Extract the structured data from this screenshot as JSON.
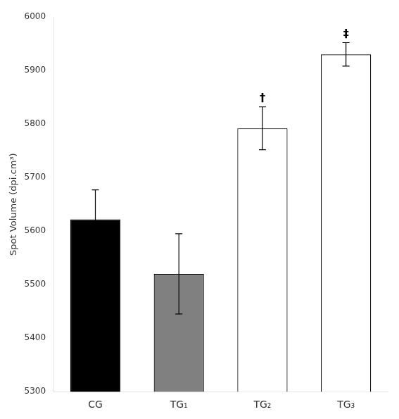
{
  "chart_data": {
    "type": "bar",
    "categories": [
      "CG",
      "TG₁",
      "TG₂",
      "TG₃"
    ],
    "values": [
      5622,
      5520,
      5792,
      5930
    ],
    "errors": [
      55,
      75,
      40,
      22
    ],
    "colors": [
      "black",
      "#808080",
      "white",
      "white"
    ],
    "ylabel": "Spot Volume (dpi.cm³)",
    "ylim": [
      5300,
      6000
    ],
    "yticks": [
      5300,
      5400,
      5500,
      5600,
      5700,
      5800,
      5900,
      6000
    ],
    "annotations": [
      {
        "x": "TG₂",
        "text": "†"
      },
      {
        "x": "TG₃",
        "text": "‡"
      }
    ],
    "grid": false
  }
}
